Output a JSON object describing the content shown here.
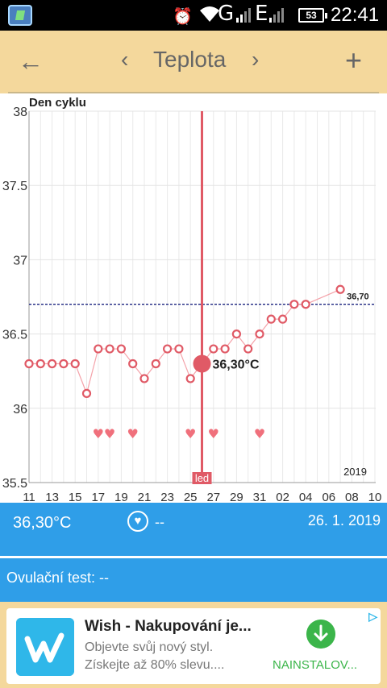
{
  "status_bar": {
    "network_1": "G",
    "network_2": "E",
    "battery": "53",
    "time": "22:41"
  },
  "toolbar": {
    "title": "Teplota"
  },
  "chart_data": {
    "type": "line",
    "title": "",
    "ylabel": "Den cyklu",
    "year_label": "2019",
    "ylim": [
      35.5,
      38
    ],
    "y_ticks": [
      "35.5",
      "36",
      "36.5",
      "37",
      "37.5",
      "38"
    ],
    "x_ticks": [
      "11",
      "13",
      "15",
      "17",
      "19",
      "21",
      "23",
      "25",
      "27",
      "29",
      "31",
      "02",
      "04",
      "06",
      "08",
      "10"
    ],
    "series": [
      {
        "values": [
          36.3,
          36.3,
          36.3,
          36.3,
          36.3,
          36.1,
          36.4,
          36.4,
          36.4,
          36.3,
          36.2,
          36.3,
          36.4,
          36.4,
          36.2,
          36.3,
          36.4,
          36.4,
          36.5,
          36.4,
          36.5,
          36.6,
          36.6,
          36.7,
          36.7,
          null,
          null,
          36.8
        ]
      }
    ],
    "hearts_at_index": [
      6,
      7,
      9,
      14,
      16,
      20
    ],
    "cover_line": 36.7,
    "cover_line_label": "36,70",
    "selected_index": 15,
    "selected_label": "36,30°C",
    "month_marker": "led"
  },
  "info_bar": {
    "temperature": "36,30°C",
    "dash": "--",
    "date": "26. 1. 2019"
  },
  "ovulation": {
    "text": "Ovulační test: --"
  },
  "ad": {
    "title": "Wish - Nakupování je...",
    "line1": "Objevte svůj nový styl.",
    "line2": "Získejte až 80% slevu....",
    "install": "NAINSTALOV...",
    "colors": {
      "brand": "#2fb7e9",
      "install": "#3bb54a"
    }
  },
  "colors": {
    "toolbar": "#f4d89c",
    "accent": "#e05a66",
    "info": "#2f9ee8"
  }
}
